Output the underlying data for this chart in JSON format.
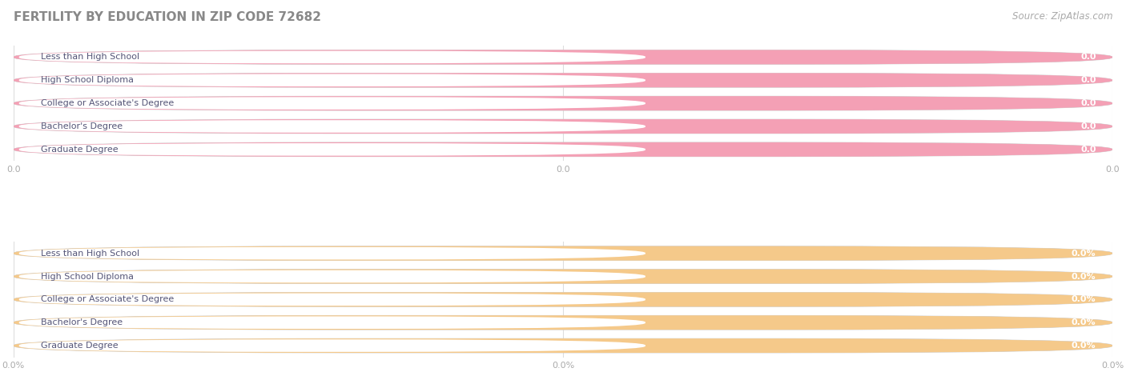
{
  "title": "FERTILITY BY EDUCATION IN ZIP CODE 72682",
  "source": "Source: ZipAtlas.com",
  "categories": [
    "Less than High School",
    "High School Diploma",
    "College or Associate's Degree",
    "Bachelor's Degree",
    "Graduate Degree"
  ],
  "group1": {
    "values": [
      0.0,
      0.0,
      0.0,
      0.0,
      0.0
    ],
    "bar_color": "#f4a0b5",
    "bar_outer_color": "#e8e8e8",
    "value_format": "0.0",
    "xtick_labels": [
      "0.0",
      "0.0",
      "0.0"
    ]
  },
  "group2": {
    "values": [
      0.0,
      0.0,
      0.0,
      0.0,
      0.0
    ],
    "bar_color": "#f5c98a",
    "bar_outer_color": "#e8e8e8",
    "value_format": "0.0%",
    "xtick_labels": [
      "0.0%",
      "0.0%",
      "0.0%"
    ]
  },
  "background_color": "#ffffff",
  "outer_bar_color": "#e2e2e2",
  "white_label_bg": "#ffffff",
  "label_text_color": "#555577",
  "value_text_color": "#ffffff",
  "title_color": "#888888",
  "source_color": "#aaaaaa",
  "title_fontsize": 11,
  "label_fontsize": 8,
  "value_fontsize": 8,
  "source_fontsize": 8.5,
  "grid_color": "#dddddd",
  "tick_color": "#aaaaaa"
}
